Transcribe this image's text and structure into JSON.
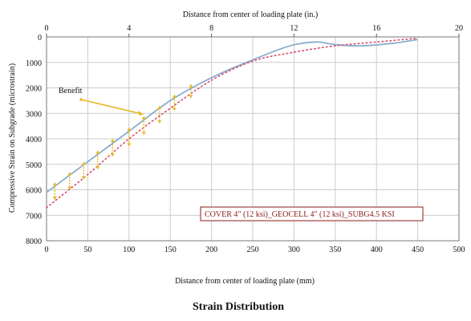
{
  "figure": {
    "caption": "Strain Distribution"
  },
  "chart_data": {
    "type": "line",
    "title": "",
    "xlabel": "Distance from center of loading plate (mm)",
    "xlabel_top": "Distance from center of loading plate (in.)",
    "ylabel": "Compressive Strain on Subgrade (microstrain)",
    "xlim": [
      0,
      500
    ],
    "xlim_top": [
      0,
      20
    ],
    "ylim": [
      0,
      8000
    ],
    "y_inverted": true,
    "grid": true,
    "x_ticks": [
      "0",
      "50",
      "100",
      "150",
      "200",
      "250",
      "300",
      "350",
      "400",
      "450",
      "500"
    ],
    "x_ticks_top": [
      "0",
      "4",
      "8",
      "12",
      "16",
      "20"
    ],
    "y_ticks": [
      "0",
      "1000",
      "2000",
      "3000",
      "4000",
      "5000",
      "6000",
      "7000",
      "8000"
    ],
    "series": [
      {
        "style": "solid",
        "color": "#8aaccc",
        "x": [
          0,
          50,
          100,
          150,
          200,
          250,
          290,
          310,
          330,
          350,
          380,
          420,
          450
        ],
        "y": [
          6100,
          4900,
          3700,
          2500,
          1600,
          900,
          400,
          250,
          200,
          300,
          350,
          250,
          100
        ]
      },
      {
        "style": "dotted",
        "color": "#d84a6a",
        "x": [
          0,
          50,
          100,
          150,
          200,
          250,
          300,
          350,
          400,
          450
        ],
        "y": [
          6700,
          5400,
          4000,
          2800,
          1700,
          950,
          600,
          350,
          200,
          50
        ]
      }
    ],
    "benefit_arrows": [
      {
        "x": 10,
        "y_from": 5700,
        "y_to": 6400
      },
      {
        "x": 28,
        "y_from": 5300,
        "y_to": 6000
      },
      {
        "x": 45,
        "y_from": 4900,
        "y_to": 5600
      },
      {
        "x": 62,
        "y_from": 4450,
        "y_to": 5200
      },
      {
        "x": 80,
        "y_from": 4000,
        "y_to": 4700
      },
      {
        "x": 100,
        "y_from": 3550,
        "y_to": 4300
      },
      {
        "x": 118,
        "y_from": 3100,
        "y_to": 3850
      },
      {
        "x": 137,
        "y_from": 2700,
        "y_to": 3400
      },
      {
        "x": 155,
        "y_from": 2250,
        "y_to": 2900
      },
      {
        "x": 175,
        "y_from": 1850,
        "y_to": 2400
      }
    ],
    "annotations": [
      {
        "text": "Benefit",
        "arrow_x": 118,
        "arrow_y": 3050
      }
    ],
    "legend": {
      "text": "COVER 4\" (12 ksi)_GEOCELL 4\" (12 ksi)_SUBG4.5 KSI",
      "position": "bottom-right"
    },
    "colors": {
      "arrow": "#e8b923",
      "grid": "#cccccc",
      "legend_border": "#8b1a1a"
    }
  }
}
